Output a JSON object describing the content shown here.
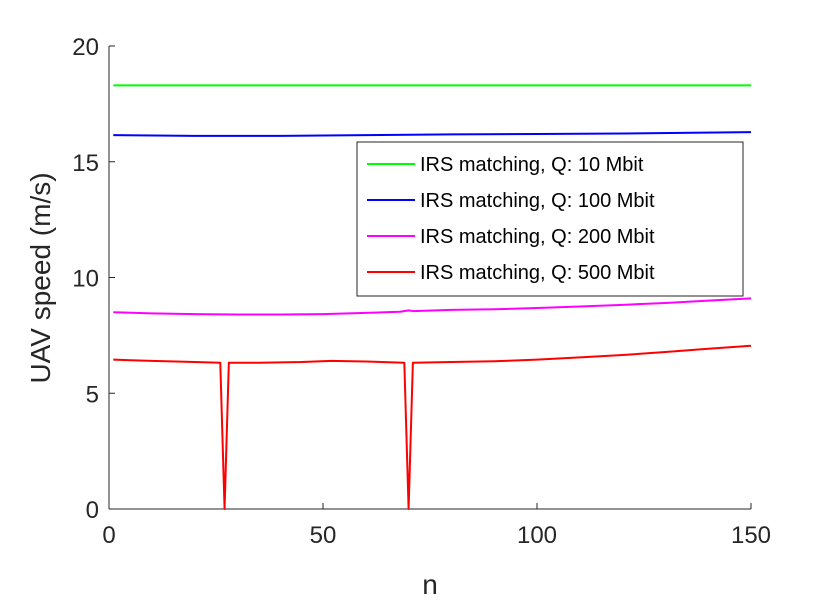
{
  "chart_data": {
    "type": "line",
    "xlabel": "n",
    "ylabel": "UAV speed (m/s)",
    "xlim": [
      0,
      150
    ],
    "ylim": [
      0,
      20
    ],
    "xticks": [
      0,
      50,
      100,
      150
    ],
    "yticks": [
      0,
      5,
      10,
      15,
      20
    ],
    "grid": false,
    "legend_position": "upper-right",
    "series": [
      {
        "name": "IRS matching, Q: 10 Mbit",
        "color": "#00ff00",
        "x": [
          1,
          150
        ],
        "y": [
          18.3,
          18.3
        ]
      },
      {
        "name": "IRS matching, Q: 100 Mbit",
        "color": "#0000ff",
        "x": [
          1,
          20,
          40,
          60,
          80,
          100,
          120,
          150
        ],
        "y": [
          16.15,
          16.12,
          16.12,
          16.15,
          16.18,
          16.2,
          16.22,
          16.28
        ]
      },
      {
        "name": "IRS matching, Q: 200 Mbit",
        "color": "#ff00ff",
        "x": [
          1,
          10,
          20,
          30,
          40,
          50,
          60,
          68,
          70,
          71,
          80,
          90,
          100,
          110,
          120,
          130,
          140,
          150
        ],
        "y": [
          8.5,
          8.45,
          8.42,
          8.4,
          8.4,
          8.42,
          8.47,
          8.52,
          8.58,
          8.55,
          8.6,
          8.63,
          8.68,
          8.75,
          8.82,
          8.9,
          9.0,
          9.1
        ]
      },
      {
        "name": "IRS matching, Q: 500 Mbit",
        "color": "#ff0000",
        "x": [
          1,
          10,
          20,
          26,
          27,
          28,
          35,
          45,
          52,
          60,
          69,
          70,
          71,
          80,
          90,
          100,
          110,
          120,
          130,
          140,
          150
        ],
        "y": [
          6.45,
          6.4,
          6.35,
          6.32,
          0,
          6.32,
          6.32,
          6.35,
          6.4,
          6.37,
          6.32,
          0,
          6.32,
          6.35,
          6.38,
          6.45,
          6.55,
          6.65,
          6.78,
          6.92,
          7.05
        ]
      }
    ]
  }
}
